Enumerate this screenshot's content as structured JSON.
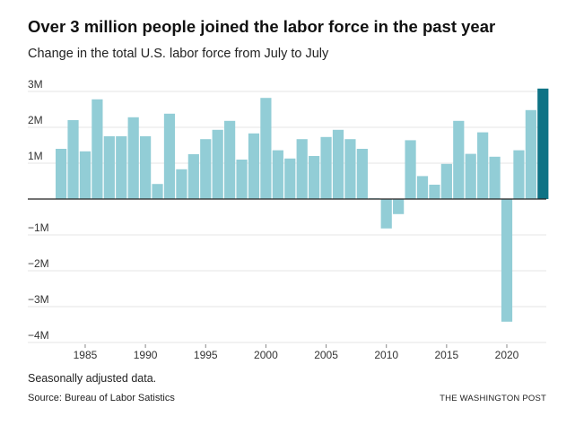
{
  "colors": {
    "bar": "#92cdd6",
    "highlight": "#0e7385",
    "grid": "#e6e6e6",
    "baseline": "#222222",
    "text": "#222222"
  },
  "chart_data": {
    "type": "bar",
    "title": "Over 3 million people joined the labor force in the past year",
    "subtitle": "Change in the total U.S. labor force from July to July",
    "xlabel": "",
    "ylabel": "",
    "categories": [
      1983,
      1984,
      1985,
      1986,
      1987,
      1988,
      1989,
      1990,
      1991,
      1992,
      1993,
      1994,
      1995,
      1996,
      1997,
      1998,
      1999,
      2000,
      2001,
      2002,
      2003,
      2004,
      2005,
      2006,
      2007,
      2008,
      2009,
      2010,
      2011,
      2012,
      2013,
      2014,
      2015,
      2016,
      2017,
      2018,
      2019,
      2020,
      2021,
      2022,
      2023
    ],
    "values": [
      1.4,
      2.2,
      1.33,
      2.78,
      1.75,
      1.75,
      2.28,
      1.75,
      0.42,
      2.38,
      0.83,
      1.25,
      1.67,
      1.93,
      2.18,
      1.1,
      1.83,
      2.82,
      1.36,
      1.13,
      1.67,
      1.2,
      1.73,
      1.93,
      1.67,
      1.4,
      0.02,
      -0.82,
      -0.42,
      1.64,
      0.64,
      0.4,
      0.98,
      2.18,
      1.26,
      1.86,
      1.18,
      -3.42,
      1.36,
      2.48,
      3.08
    ],
    "highlight_index": 40,
    "ylim": [
      -4,
      3
    ],
    "y_ticks": [
      3,
      2,
      1,
      0,
      -1,
      -2,
      -3,
      -4
    ],
    "y_tick_labels": [
      "3M",
      "2M",
      "1M",
      "",
      "−1M",
      "−2M",
      "−3M",
      "−4M"
    ],
    "x_ticks": [
      1985,
      1990,
      1995,
      2000,
      2005,
      2010,
      2015,
      2020
    ],
    "grid": true,
    "legend": "none"
  },
  "footer": {
    "note": "Seasonally adjusted data.",
    "source": "Source: Bureau of Labor Satistics",
    "credit": "THE WASHINGTON POST"
  }
}
